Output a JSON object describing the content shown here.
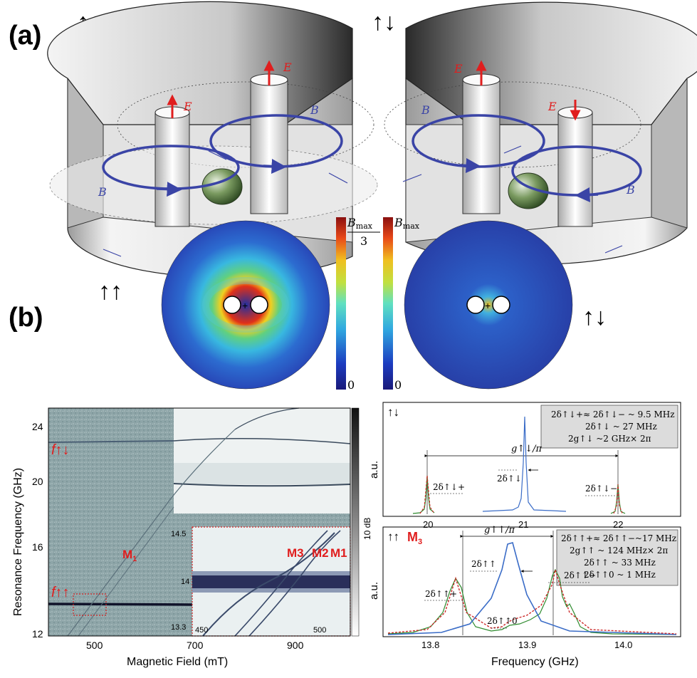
{
  "panel_labels": {
    "a": "(a)",
    "b": "(b)"
  },
  "spin_labels": {
    "parallel": "↑↑",
    "antiparallel": "↑↓"
  },
  "field_labels": {
    "E": "E",
    "B": "B"
  },
  "colorbars": {
    "left": {
      "max": "B",
      "max_sub": "max",
      "denom": "3",
      "min": "0"
    },
    "right": {
      "max": "B",
      "max_sub": "max",
      "min": "0"
    }
  },
  "spectrogram": {
    "xlabel": "Magnetic Field (mT)",
    "ylabel": "Resonance Frequency (GHz)",
    "x_ticks": [
      "500",
      "700",
      "900"
    ],
    "y_ticks": [
      "12",
      "16",
      "20",
      "24"
    ],
    "colorbar_label": "10 dB",
    "labels": {
      "f_anti": "f↑↓",
      "f_par": "f↑↑",
      "M1": "M",
      "M1_sub": "1"
    },
    "inset": {
      "y_ticks": [
        "14.5",
        "14",
        "13.3"
      ],
      "x_ticks": [
        "450",
        "500"
      ],
      "labels": [
        "M3",
        "M2",
        "M1"
      ]
    }
  },
  "spectra_top": {
    "corner_label": "↑↓",
    "ylabel": "a.u.",
    "x_ticks": [
      "20",
      "21",
      "22"
    ],
    "legend_lines": [
      "2δ↑↓+≈ 2δ↑↓− ~ 9.5 MHz",
      "2δ↑↓ ~ 27 MHz",
      "2g↑↓ ~2 GHz× 2π"
    ],
    "annotations": {
      "g": "g↑↓/π",
      "d_center": "2δ↑↓",
      "d_plus": "2δ↑↓+",
      "d_minus": "2δ↑↓−"
    }
  },
  "spectra_bottom": {
    "corner_label": "↑↑",
    "mode_label": "M",
    "mode_sub": "3",
    "ylabel": "a.u.",
    "xlabel": "Frequency (GHz)",
    "x_ticks": [
      "13.8",
      "13.9",
      "14.0"
    ],
    "legend_lines": [
      "2δ↑↑+≈ 2δ↑↑−~17 MHz",
      "2g↑↑ ~ 124 MHz× 2π",
      "2δ↑↑ ~ 33 MHz",
      "2δ↑↑0 ~ 1 MHz"
    ],
    "annotations": {
      "g": "g↑↑/π",
      "d_center": "2δ↑↑",
      "d_plus": "2δ↑↑+",
      "d_minus": "2δ↑↑−",
      "d_zero": "2δ↑↑0"
    }
  },
  "colors": {
    "accent_red": "#e01e1e",
    "field_blue": "#3a44a6",
    "spectrum_blue": "#3a6cc7",
    "spectrum_green": "#2e8b2e",
    "fit_red": "#cc2a2a"
  }
}
